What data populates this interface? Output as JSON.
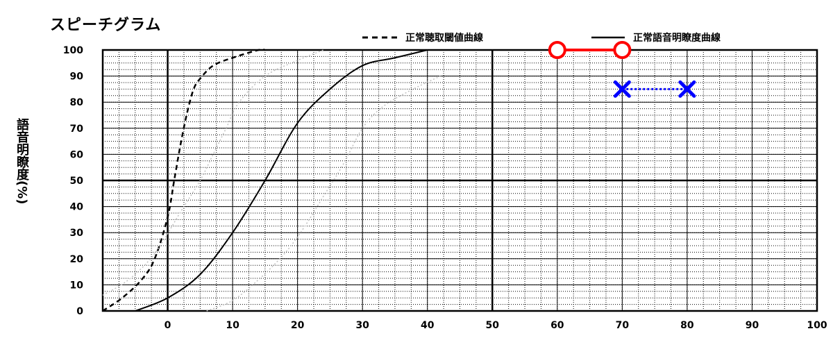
{
  "chart_data": {
    "type": "line",
    "title": "スピーチグラム",
    "ylabel": "語音明瞭度(%)",
    "xlabel": "",
    "xlim": [
      -10,
      100
    ],
    "ylim": [
      0,
      100
    ],
    "x_ticks": [
      0,
      10,
      20,
      30,
      40,
      50,
      60,
      70,
      80,
      90,
      100
    ],
    "y_ticks": [
      0,
      10,
      20,
      30,
      40,
      50,
      60,
      70,
      80,
      90,
      100
    ],
    "grid": true,
    "legend_position": "top-right",
    "legend": [
      {
        "label": "正常聴取閾値曲線",
        "style": "dashed"
      },
      {
        "label": "正常語音明瞭度曲線",
        "style": "solid"
      }
    ],
    "series": [
      {
        "name": "正常聴取閾値曲線",
        "style": "dashed",
        "color": "#000000",
        "x": [
          -10,
          -7,
          -4,
          -2,
          0,
          1,
          2,
          3,
          4,
          5,
          7,
          10,
          14,
          15
        ],
        "y": [
          0,
          5,
          12,
          20,
          36,
          50,
          64,
          76,
          85,
          89,
          94,
          97,
          100,
          100
        ]
      },
      {
        "name": "正常語音明瞭度曲線",
        "style": "solid",
        "color": "#000000",
        "x": [
          -5,
          0,
          5,
          10,
          15,
          20,
          25,
          30,
          35,
          40
        ],
        "y": [
          0,
          5,
          14,
          30,
          50,
          72,
          85,
          94,
          97,
          100
        ]
      },
      {
        "style": "dotted",
        "color": "#c0c0c0",
        "x": [
          -10,
          -6,
          -2,
          2,
          5,
          7,
          9,
          11,
          15,
          20,
          24
        ],
        "y": [
          6,
          12,
          22,
          38,
          50,
          60,
          70,
          80,
          90,
          96,
          100
        ]
      },
      {
        "style": "dotted",
        "color": "#c0c0c0",
        "x": [
          6,
          10,
          14,
          18,
          21,
          24,
          27,
          30,
          33,
          37,
          42
        ],
        "y": [
          0,
          4,
          12,
          22,
          32,
          44,
          56,
          70,
          78,
          84,
          90
        ]
      },
      {
        "style": "solid",
        "color": "#ff0000",
        "marker": "circle",
        "x": [
          60,
          70
        ],
        "y": [
          100,
          100
        ]
      },
      {
        "style": "dotted",
        "color": "#0000ff",
        "marker": "x",
        "x": [
          70,
          80
        ],
        "y": [
          85,
          85
        ]
      }
    ]
  }
}
